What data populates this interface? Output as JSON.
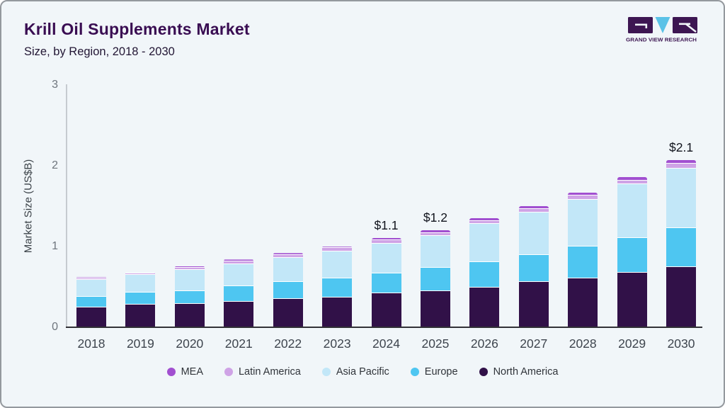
{
  "header": {
    "title": "Krill Oil Supplements Market",
    "subtitle": "Size, by Region, 2018 - 2030"
  },
  "logo": {
    "caption": "GRAND VIEW RESEARCH",
    "dark_color": "#3d1652",
    "blue_color": "#5bc2e7"
  },
  "chart_data": {
    "type": "bar",
    "stacked": true,
    "title": "Krill Oil Supplements Market Size, by Region, 2018 - 2030",
    "ylabel": "Market Size (US$B)",
    "ylim": [
      0,
      3
    ],
    "yticks": [
      "0",
      "1",
      "2",
      "3"
    ],
    "grid": false,
    "legend_position": "bottom",
    "categories": [
      "2018",
      "2019",
      "2020",
      "2021",
      "2022",
      "2023",
      "2024",
      "2025",
      "2026",
      "2027",
      "2028",
      "2029",
      "2030"
    ],
    "series": [
      {
        "name": "North America",
        "color": "#311148",
        "values": [
          0.24,
          0.27,
          0.28,
          0.31,
          0.34,
          0.36,
          0.41,
          0.44,
          0.48,
          0.55,
          0.6,
          0.67,
          0.74
        ]
      },
      {
        "name": "Europe",
        "color": "#4ec6f1",
        "values": [
          0.13,
          0.15,
          0.16,
          0.19,
          0.21,
          0.24,
          0.25,
          0.29,
          0.32,
          0.34,
          0.39,
          0.43,
          0.48
        ]
      },
      {
        "name": "Asia Pacific",
        "color": "#c2e7f8",
        "values": [
          0.21,
          0.22,
          0.26,
          0.27,
          0.3,
          0.33,
          0.37,
          0.39,
          0.47,
          0.52,
          0.58,
          0.66,
          0.74
        ]
      },
      {
        "name": "Latin America",
        "color": "#cfa3e6",
        "values": [
          0.02,
          0.02,
          0.03,
          0.04,
          0.04,
          0.04,
          0.04,
          0.04,
          0.04,
          0.05,
          0.05,
          0.05,
          0.06
        ]
      },
      {
        "name": "MEA",
        "color": "#a14fd0",
        "values": [
          0.01,
          0.01,
          0.02,
          0.02,
          0.02,
          0.02,
          0.03,
          0.03,
          0.03,
          0.03,
          0.04,
          0.04,
          0.04
        ]
      }
    ],
    "bar_value_labels": [
      {
        "category": "2024",
        "label": "$1.1"
      },
      {
        "category": "2025",
        "label": "$1.2"
      },
      {
        "category": "2030",
        "label": "$2.1"
      }
    ],
    "legend_order": [
      "MEA",
      "Latin America",
      "Asia Pacific",
      "Europe",
      "North America"
    ]
  }
}
